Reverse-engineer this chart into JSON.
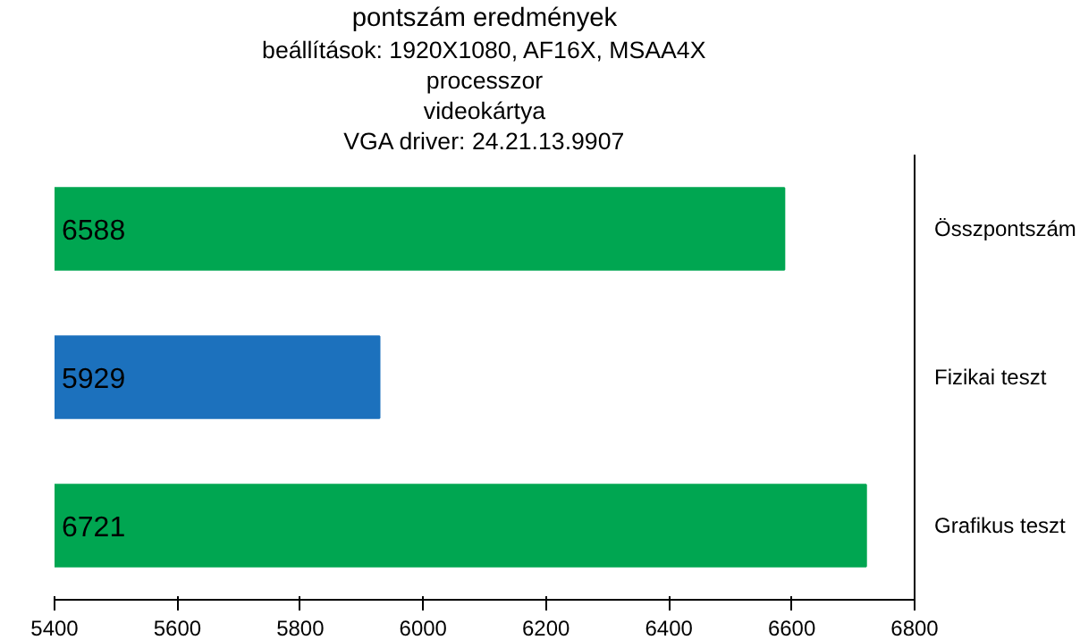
{
  "chart_data": {
    "type": "bar",
    "orientation": "horizontal",
    "title": "pontszám eredmények",
    "subtitle": "beállítások: 1920X1080, AF16X, MSAA4X",
    "annotations": [
      "processzor",
      "videokártya",
      "VGA driver: 24.21.13.9907"
    ],
    "categories": [
      "Összpontszám",
      "Fizikai teszt",
      "Grafikus teszt"
    ],
    "values": [
      6588,
      5929,
      6721
    ],
    "colors": [
      "#00a651",
      "#1c71bd",
      "#00a651"
    ],
    "xlim": [
      5400,
      6800
    ],
    "xticks": [
      5400,
      5600,
      5800,
      6000,
      6200,
      6400,
      6600,
      6800
    ],
    "data_labels": true,
    "grid": false
  }
}
